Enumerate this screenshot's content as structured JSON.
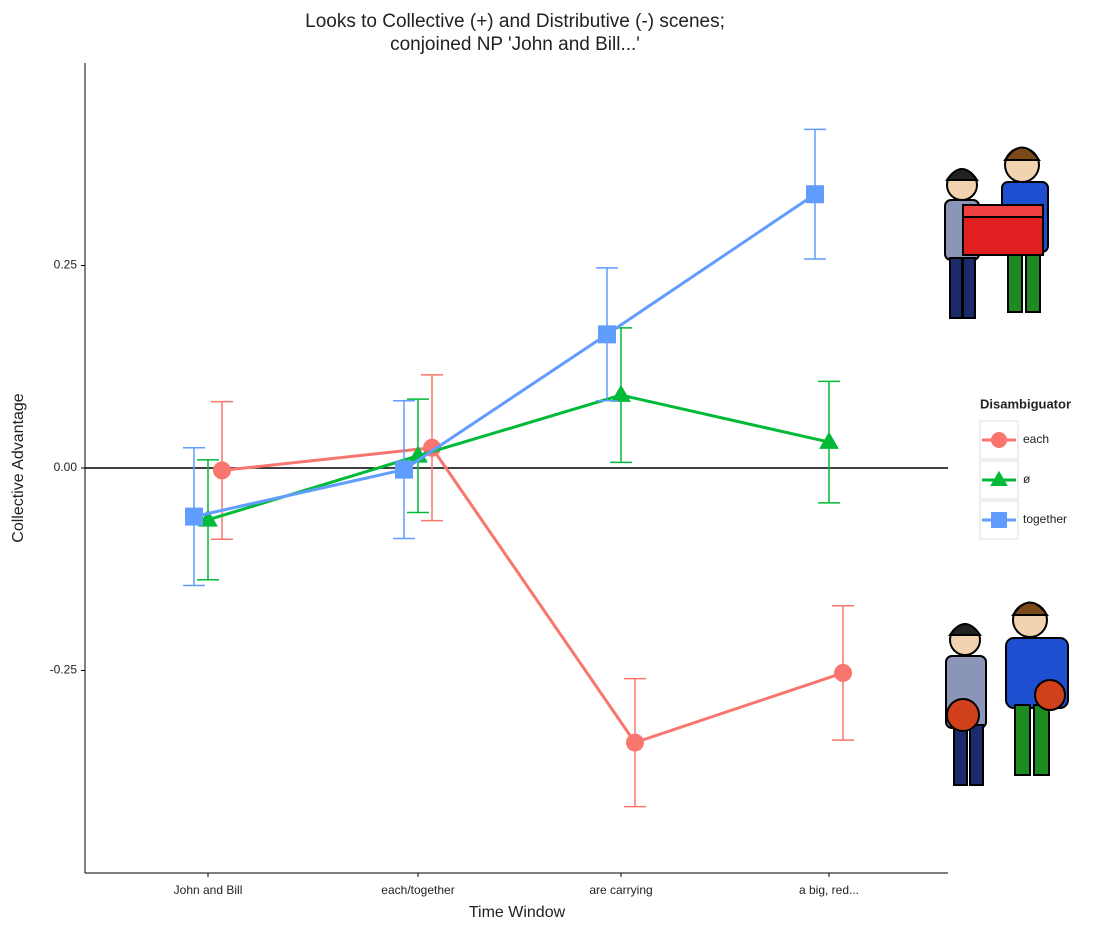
{
  "chart_data": {
    "type": "line",
    "title": [
      "Looks to Collective (+) and Distributive (-) scenes;",
      "conjoined NP 'John and Bill...'"
    ],
    "x_label": "Time Window",
    "y_label": "Collective Advantage",
    "categories": [
      "John and Bill",
      "each/together",
      "are carrying",
      "a big, red..."
    ],
    "ylim": [
      -0.5,
      0.5
    ],
    "yticks": [
      -0.25,
      {
        "value": 0,
        "label": "0.00"
      },
      0.25
    ],
    "hline": 0,
    "legend_title": "Disambiguator",
    "legend": "right",
    "series": [
      {
        "name": "each",
        "color": "#f8766d",
        "marker": "circle",
        "values": [
          -0.003,
          0.025,
          -0.339,
          -0.253
        ],
        "errors": [
          0.085,
          0.09,
          0.079,
          0.083
        ]
      },
      {
        "name": "ø",
        "color": "#00ba38",
        "marker": "triangle",
        "values": [
          -0.064,
          0.015,
          0.09,
          0.032
        ],
        "errors": [
          0.074,
          0.07,
          0.083,
          0.075
        ]
      },
      {
        "name": "together",
        "color": "#619cff",
        "marker": "square",
        "values": [
          -0.06,
          -0.002,
          0.165,
          0.338
        ],
        "errors": [
          0.085,
          0.085,
          0.082,
          0.08
        ]
      }
    ]
  }
}
